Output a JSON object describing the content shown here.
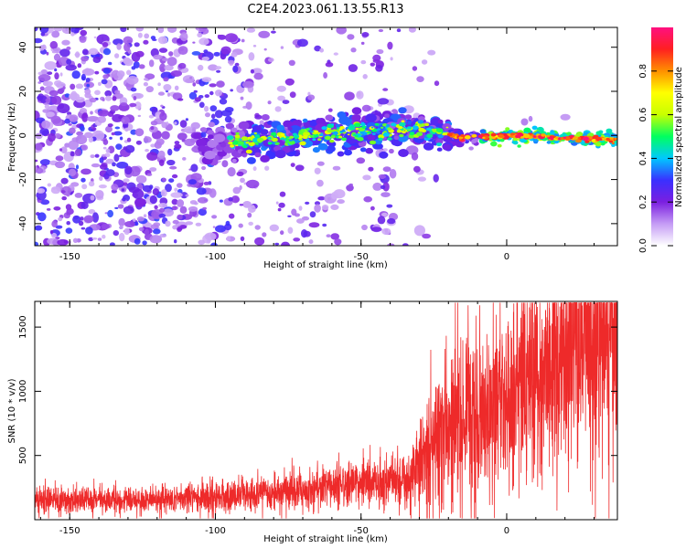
{
  "title": "C2E4.2023.061.13.55.R13",
  "chart_data": [
    {
      "type": "heatmap",
      "name": "spectrogram",
      "xlabel": "Height of straight line (km)",
      "ylabel": "Frequency (Hz)",
      "xlim": [
        -162,
        38
      ],
      "ylim": [
        -50,
        49
      ],
      "xticks": [
        -150,
        -100,
        -50,
        0
      ],
      "yticks": [
        -40,
        -20,
        0,
        20,
        40
      ],
      "colorbar": {
        "label": "Normalized spectral amplitude",
        "range": [
          0,
          1
        ],
        "ticks": [
          "0.0",
          "0.2",
          "0.4",
          "0.6",
          "0.8"
        ],
        "ticks_values": [
          0.0,
          0.2,
          0.4,
          0.6,
          0.8
        ],
        "colors": [
          "#ffffff",
          "#c59cf5",
          "#7b1fe0",
          "#3a30ff",
          "#00c8ff",
          "#00ff60",
          "#c8ff00",
          "#ffff00",
          "#ff9000",
          "#ff2020",
          "#ff1080"
        ]
      },
      "ridge": {
        "description_points_km_hz": [
          [
            -100,
            -4
          ],
          [
            -70,
            0
          ],
          [
            -40,
            3
          ],
          [
            -25,
            2
          ],
          [
            -15,
            -1
          ],
          [
            0,
            0
          ],
          [
            35,
            -2
          ]
        ]
      }
    },
    {
      "type": "line",
      "name": "snr",
      "xlabel": "Height of straight line (km)",
      "ylabel": "SNR (10 * v/v)",
      "xlim": [
        -162,
        38
      ],
      "ylim": [
        0,
        1700
      ],
      "xticks": [
        -150,
        -100,
        -50,
        0
      ],
      "yticks": [
        500,
        1000,
        1500
      ],
      "color": "#ee2a2a",
      "trend_x": [
        -162,
        -130,
        -100,
        -80,
        -60,
        -40,
        -33,
        -25,
        -18,
        -12,
        -5,
        0,
        10,
        20,
        30,
        38
      ],
      "trend_y": [
        150,
        150,
        170,
        200,
        260,
        310,
        330,
        650,
        800,
        780,
        870,
        950,
        1050,
        1250,
        1400,
        1500
      ]
    }
  ]
}
